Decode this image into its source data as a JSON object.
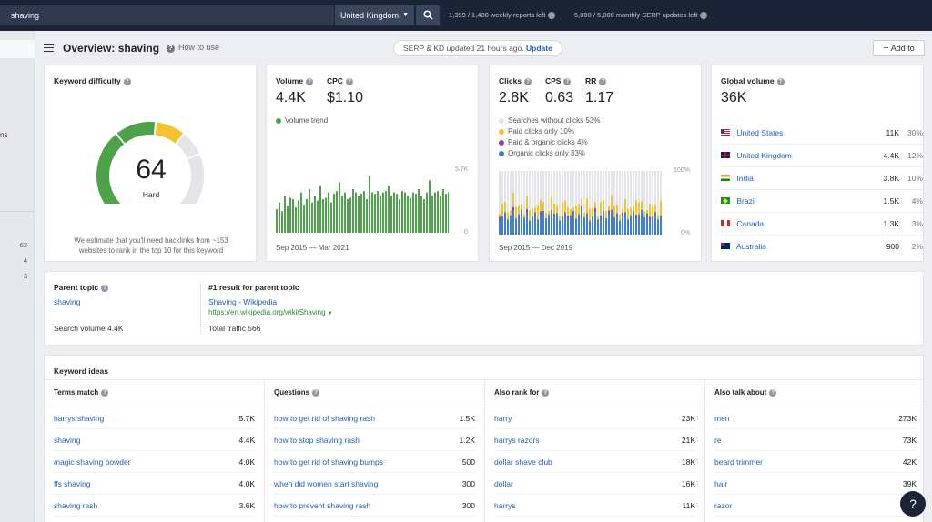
{
  "topbar": {
    "search_value": "shaving",
    "country": "United Kingdom",
    "weekly_reports": "1,399 / 1,400 weekly reports left",
    "monthly_serp": "5,000 / 5,000 monthly SERP updates left"
  },
  "sidebar": {
    "fragment": "ns",
    "numbers": [
      "62",
      "4",
      "3"
    ]
  },
  "header": {
    "title": "Overview: shaving",
    "how_to_use": "How to use",
    "serp_status": "SERP & KD updated 21 hours ago.",
    "update_link": "Update",
    "add_to": "Add to"
  },
  "keyword_difficulty": {
    "title": "Keyword difficulty",
    "score": "64",
    "score_value": 64,
    "label": "Hard",
    "note_line1": "We estimate that you'll need backlinks from ~153",
    "note_line2": "websites to rank in the top 10 for this keyword",
    "colors": {
      "green": "#4ea24a",
      "yellow": "#f2c230",
      "gray": "#e3e5e8"
    }
  },
  "volume": {
    "volume_label": "Volume",
    "volume_value": "4.4K",
    "cpc_label": "CPC",
    "cpc_value": "$1.10",
    "trend_label": "Volume trend",
    "y_max_label": "5.7K",
    "y_min_label": "0",
    "date_range": "Sep 2015 — Mar 2021",
    "bar_color": "#4ea24a"
  },
  "clicks": {
    "clicks_label": "Clicks",
    "clicks_value": "2.8K",
    "cps_label": "CPS",
    "cps_value": "0.63",
    "rr_label": "RR",
    "rr_value": "1.17",
    "legend": [
      {
        "label": "Searches without clicks 53%",
        "color": "#e3e5e8"
      },
      {
        "label": "Paid clicks only 10%",
        "color": "#f2c230"
      },
      {
        "label": "Paid & organic clicks 4%",
        "color": "#8e44ad"
      },
      {
        "label": "Organic clicks only 33%",
        "color": "#3d7fd6"
      }
    ],
    "y_max_label": "100%",
    "y_min_label": "0%",
    "date_range": "Sep 2015 — Dec 2019"
  },
  "global_volume": {
    "title": "Global volume",
    "value": "36K",
    "countries": [
      {
        "name": "United States",
        "volume": "11K",
        "pct": "30%",
        "flag": "us"
      },
      {
        "name": "United Kingdom",
        "volume": "4.4K",
        "pct": "12%",
        "flag": "uk"
      },
      {
        "name": "India",
        "volume": "3.8K",
        "pct": "10%",
        "flag": "in"
      },
      {
        "name": "Brazil",
        "volume": "1.5K",
        "pct": "4%",
        "flag": "br"
      },
      {
        "name": "Canada",
        "volume": "1.3K",
        "pct": "3%",
        "flag": "ca"
      },
      {
        "name": "Australia",
        "volume": "900",
        "pct": "2%",
        "flag": "au"
      }
    ]
  },
  "parent_topic": {
    "title": "Parent topic",
    "topic": "shaving",
    "search_volume": "Search volume 4.4K",
    "result_title": "#1 result for parent topic",
    "result_name": "Shaving - Wikipedia",
    "result_url": "https://en.wikipedia.org/wiki/Shaving",
    "total_traffic": "Total traffic 566"
  },
  "keyword_ideas": {
    "title": "Keyword ideas",
    "columns": [
      {
        "header": "Terms match",
        "rows": [
          {
            "term": "harrys shaving",
            "value": "5.7K"
          },
          {
            "term": "shaving",
            "value": "4.4K"
          },
          {
            "term": "magic shaving powder",
            "value": "4.0K"
          },
          {
            "term": "ffs shaving",
            "value": "4.0K"
          },
          {
            "term": "shaving rash",
            "value": "3.6K"
          }
        ]
      },
      {
        "header": "Questions",
        "rows": [
          {
            "term": "how to get rid of shaving rash",
            "value": "1.5K"
          },
          {
            "term": "how to stop shaving rash",
            "value": "1.2K"
          },
          {
            "term": "how to get rid of shaving bumps",
            "value": "500"
          },
          {
            "term": "when did women start shaving",
            "value": "300"
          },
          {
            "term": "how to prevent shaving rash",
            "value": "300"
          }
        ]
      },
      {
        "header": "Also rank for",
        "rows": [
          {
            "term": "harry",
            "value": "23K"
          },
          {
            "term": "harrys razors",
            "value": "21K"
          },
          {
            "term": "dollar shave club",
            "value": "18K"
          },
          {
            "term": "dollar",
            "value": "16K"
          },
          {
            "term": "harrys",
            "value": "11K"
          }
        ]
      },
      {
        "header": "Also talk about",
        "rows": [
          {
            "term": "men",
            "value": "273K"
          },
          {
            "term": "re",
            "value": "73K"
          },
          {
            "term": "beard trimmer",
            "value": "42K"
          },
          {
            "term": "hair",
            "value": "39K"
          },
          {
            "term": "razor",
            "value": ""
          }
        ]
      }
    ]
  },
  "help": {
    "label": "?"
  }
}
